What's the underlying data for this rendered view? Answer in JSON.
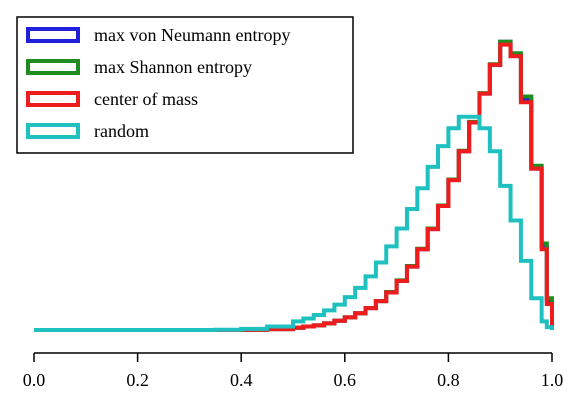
{
  "chart_data": {
    "type": "line",
    "title": "",
    "xlabel": "",
    "ylabel": "",
    "xlim": [
      0.0,
      1.0
    ],
    "ylim": [
      0,
      1.02
    ],
    "x_ticks": [
      0.0,
      0.2,
      0.4,
      0.6,
      0.8,
      1.0
    ],
    "x_tick_labels": [
      "0.0",
      "0.2",
      "0.4",
      "0.6",
      "0.8",
      "1.0"
    ],
    "y_axis_visible": false,
    "grid": false,
    "legend_position": "top-left",
    "step_style": "histogram",
    "x": [
      0.0,
      0.1,
      0.2,
      0.3,
      0.35,
      0.4,
      0.45,
      0.5,
      0.52,
      0.54,
      0.56,
      0.58,
      0.6,
      0.62,
      0.64,
      0.66,
      0.68,
      0.7,
      0.72,
      0.74,
      0.76,
      0.78,
      0.8,
      0.82,
      0.84,
      0.86,
      0.88,
      0.9,
      0.92,
      0.94,
      0.96,
      0.98,
      0.99,
      1.0
    ],
    "series": [
      {
        "name": "max von Neumann entropy",
        "color": "#1f1fdc",
        "values": [
          0.0,
          0.0,
          0.0,
          0.0,
          0.0,
          0.001,
          0.003,
          0.008,
          0.012,
          0.016,
          0.023,
          0.032,
          0.044,
          0.058,
          0.076,
          0.1,
          0.13,
          0.17,
          0.22,
          0.28,
          0.35,
          0.43,
          0.52,
          0.62,
          0.72,
          0.82,
          0.92,
          1.0,
          0.95,
          0.8,
          0.56,
          0.29,
          0.1,
          0.02
        ]
      },
      {
        "name": "max Shannon entropy",
        "color": "#1e8c1e",
        "values": [
          0.0,
          0.0,
          0.0,
          0.0,
          0.0,
          0.001,
          0.003,
          0.008,
          0.012,
          0.016,
          0.023,
          0.032,
          0.044,
          0.058,
          0.076,
          0.1,
          0.132,
          0.172,
          0.222,
          0.282,
          0.352,
          0.432,
          0.522,
          0.622,
          0.722,
          0.822,
          0.922,
          1.0,
          0.96,
          0.81,
          0.57,
          0.3,
          0.11,
          0.02
        ]
      },
      {
        "name": "center of mass",
        "color": "#ee1c1c",
        "values": [
          0.0,
          0.0,
          0.0,
          0.0,
          0.0,
          0.001,
          0.003,
          0.008,
          0.012,
          0.016,
          0.023,
          0.032,
          0.044,
          0.058,
          0.076,
          0.1,
          0.13,
          0.17,
          0.22,
          0.28,
          0.35,
          0.43,
          0.52,
          0.62,
          0.72,
          0.82,
          0.92,
          0.99,
          0.95,
          0.79,
          0.56,
          0.28,
          0.09,
          0.01
        ]
      },
      {
        "name": "random",
        "color": "#1ec0c0",
        "values": [
          0.0,
          0.0,
          0.0,
          0.0,
          0.001,
          0.004,
          0.012,
          0.03,
          0.04,
          0.052,
          0.068,
          0.088,
          0.114,
          0.146,
          0.186,
          0.234,
          0.29,
          0.352,
          0.42,
          0.492,
          0.566,
          0.638,
          0.7,
          0.74,
          0.74,
          0.7,
          0.62,
          0.5,
          0.38,
          0.24,
          0.11,
          0.03,
          0.01,
          0.0
        ]
      }
    ]
  }
}
